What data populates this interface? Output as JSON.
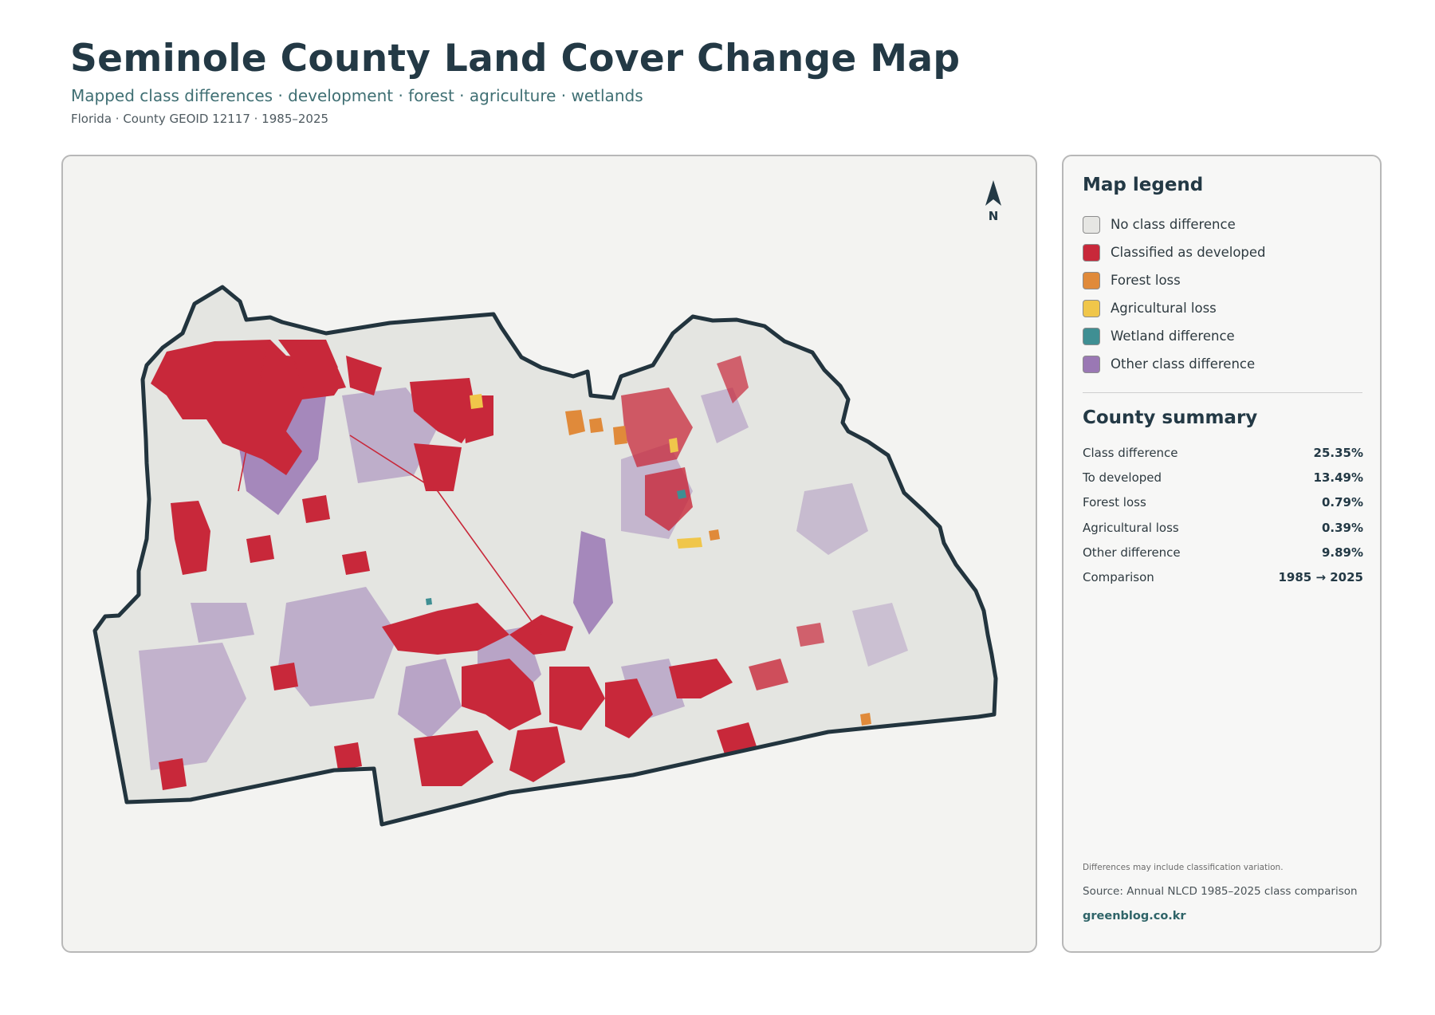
{
  "header": {
    "title": "Seminole County Land Cover Change Map",
    "subtitle": "Mapped class differences · development · forest · agriculture · wetlands",
    "meta": "Florida · County GEOID 12117 · 1985–2025"
  },
  "map": {
    "north_label": "N",
    "background_color": "#e4e5e1",
    "outline_color": "#22343e"
  },
  "legend": {
    "title": "Map legend",
    "items": [
      {
        "label": "No class difference",
        "color": "#e6e6e3"
      },
      {
        "label": "Classified as developed",
        "color": "#c8283a"
      },
      {
        "label": "Forest loss",
        "color": "#e08a3a"
      },
      {
        "label": "Agricultural loss",
        "color": "#f0c64a"
      },
      {
        "label": "Wetland difference",
        "color": "#3f8f93"
      },
      {
        "label": "Other class difference",
        "color": "#9a78b4"
      }
    ]
  },
  "summary": {
    "title": "County summary",
    "rows": [
      {
        "label": "Class difference",
        "value": "25.35%"
      },
      {
        "label": "To developed",
        "value": "13.49%"
      },
      {
        "label": "Forest loss",
        "value": "0.79%"
      },
      {
        "label": "Agricultural loss",
        "value": "0.39%"
      },
      {
        "label": "Other difference",
        "value": "9.89%"
      },
      {
        "label": "Comparison",
        "value": "1985 → 2025"
      }
    ]
  },
  "footer": {
    "note": "Differences may include classification variation.",
    "source": "Source: Annual NLCD 1985–2025 class comparison",
    "credit": "greenblog.co.kr"
  }
}
